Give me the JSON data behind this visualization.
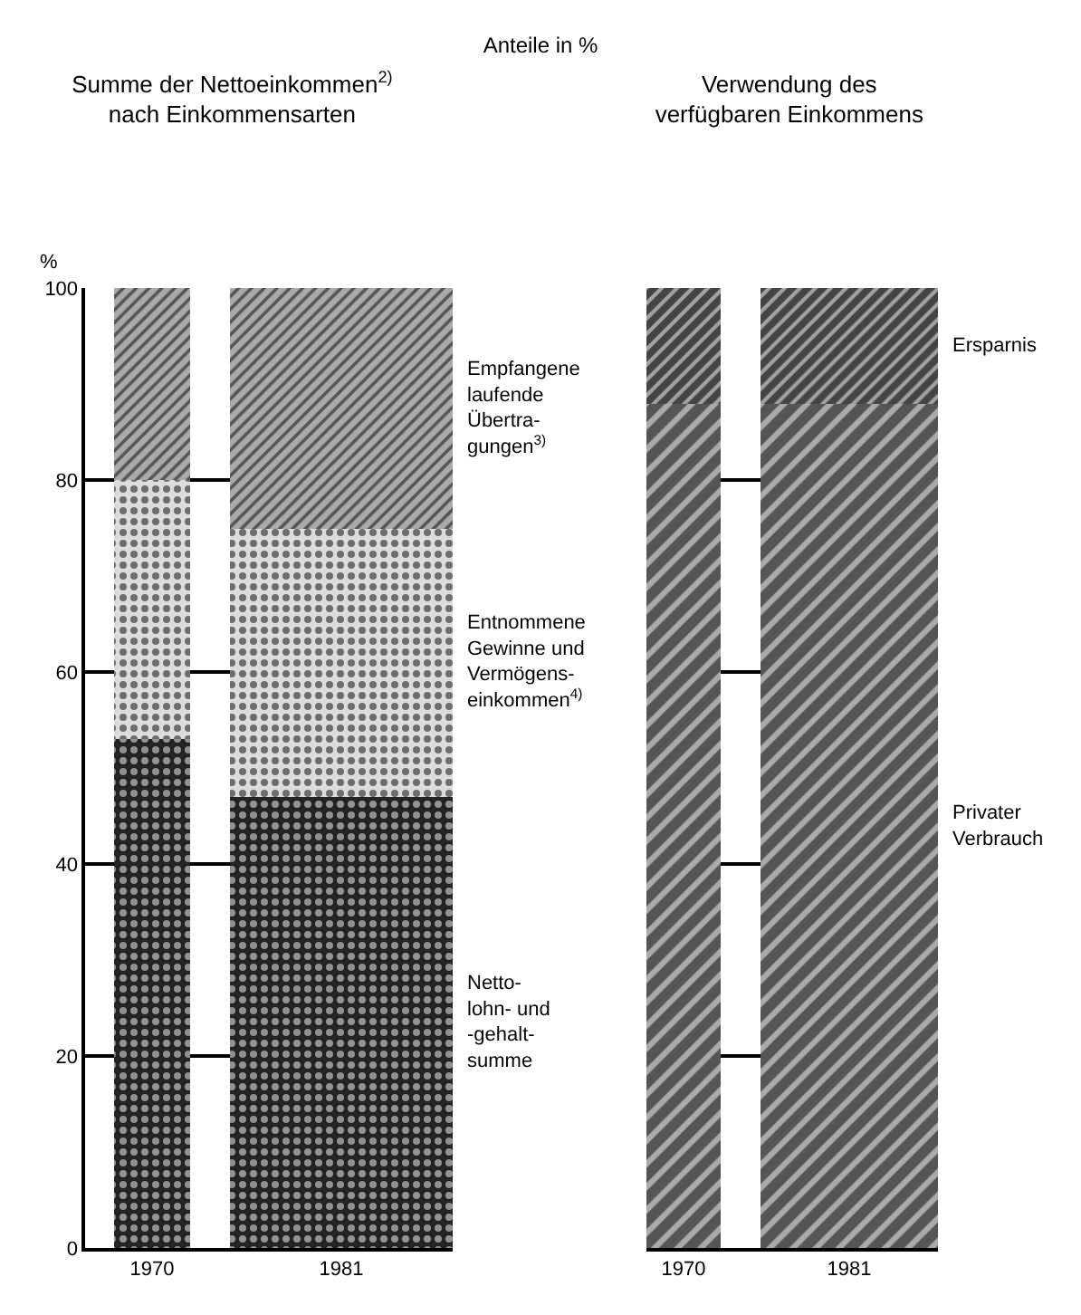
{
  "chart_data": [
    {
      "type": "bar",
      "stacked": true,
      "title": "Summe der Nettoeinkommen$^{2)}$\nnach Einkommensarten",
      "annotations": [
        "Anteile in %"
      ],
      "ylabel": "%",
      "categories": [
        "1970",
        "1981"
      ],
      "ylim": [
        0,
        100
      ],
      "yticks": [
        0,
        20,
        40,
        60,
        80,
        100
      ],
      "grid": "y",
      "legend": false,
      "series": [
        {
          "name": "Netto-\nlohn- und\n-gehalt-\nsumme",
          "color": "#222222",
          "values": [
            53,
            47
          ]
        },
        {
          "name": "Entnommene\nGewinne und\nVermögens-\neinkommen$^{4)}$",
          "color": "#dddddd",
          "values": [
            27,
            28
          ]
        },
        {
          "name": "Empfangene\nlaufende\nÜbertra-\ngungen$^{3)}$",
          "color": "#aaaaaa",
          "values": [
            20,
            25
          ]
        }
      ]
    },
    {
      "type": "bar",
      "stacked": true,
      "title": "Verwendung des\nverfügbaren Einkommens",
      "categories": [
        "1970",
        "1981"
      ],
      "ylim": [
        0,
        100
      ],
      "yticks": [
        0,
        20,
        40,
        60,
        80,
        100
      ],
      "grid": "y",
      "legend": false,
      "tick_labels": "x",
      "series": [
        {
          "name": "Privater\nVerbrauch",
          "color": "#555555",
          "values": [
            88,
            88
          ]
        },
        {
          "name": "Ersparnis",
          "color": "#444444",
          "values": [
            12,
            12
          ]
        }
      ]
    }
  ]
}
